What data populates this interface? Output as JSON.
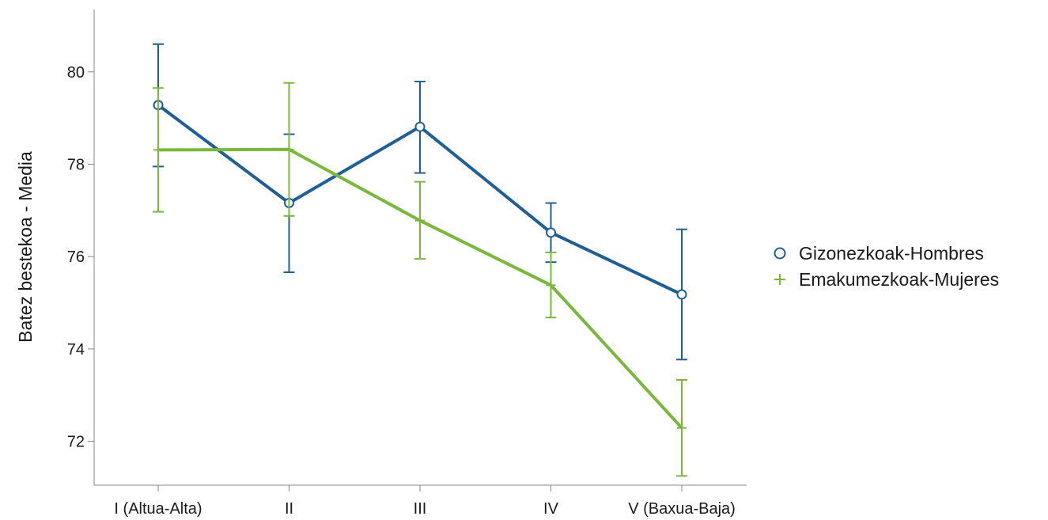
{
  "chart_data": {
    "type": "line",
    "title": "",
    "xlabel": "",
    "ylabel": "Batez bestekoa - Media",
    "categories": [
      "I (Altua-Alta)",
      "II",
      "III",
      "IV",
      "V (Baxua-Baja)"
    ],
    "ylim": [
      71.05,
      81.35
    ],
    "yticks": [
      72,
      74,
      76,
      78,
      80
    ],
    "grid": false,
    "legend_position": "right",
    "series": [
      {
        "name": "Gizonezkoak-Hombres",
        "color": "#1f5f96",
        "marker": "circle",
        "values": [
          79.28,
          77.16,
          78.81,
          76.52,
          75.18
        ],
        "lower": [
          77.95,
          75.66,
          77.81,
          75.88,
          73.77
        ],
        "upper": [
          80.6,
          78.65,
          79.79,
          77.16,
          76.59
        ]
      },
      {
        "name": "Emakumezkoak-Mujeres",
        "color": "#7ab83c",
        "marker": "plus",
        "values": [
          78.31,
          78.32,
          76.78,
          75.38,
          72.29
        ],
        "lower": [
          76.97,
          76.88,
          75.95,
          74.68,
          71.25
        ],
        "upper": [
          79.65,
          79.76,
          77.62,
          76.09,
          73.33
        ]
      }
    ]
  }
}
